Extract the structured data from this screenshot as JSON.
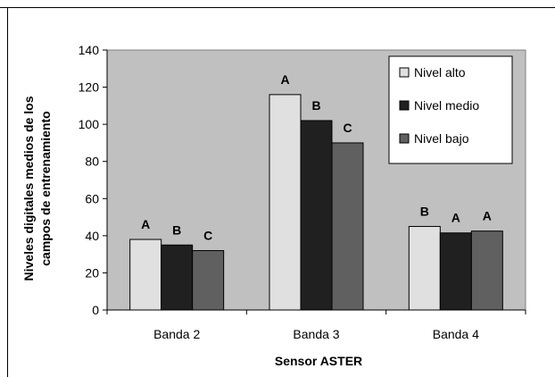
{
  "chart_data": {
    "type": "bar",
    "categories": [
      "Banda 2",
      "Banda 3",
      "Banda 4"
    ],
    "series": [
      {
        "name": "Nivel alto",
        "values": [
          38,
          116,
          45
        ],
        "annotations": [
          "A",
          "A",
          "B"
        ],
        "color": "#e0e0e0"
      },
      {
        "name": "Nivel medio",
        "values": [
          35,
          102,
          41.5
        ],
        "annotations": [
          "B",
          "B",
          "A"
        ],
        "color": "#202020"
      },
      {
        "name": "Nivel bajo",
        "values": [
          32,
          90,
          42.5
        ],
        "annotations": [
          "C",
          "C",
          "A"
        ],
        "color": "#606060"
      }
    ],
    "ylim": [
      0,
      140
    ],
    "yticks": [
      0,
      20,
      40,
      60,
      80,
      100,
      120,
      140
    ],
    "ylabel_line1": "Niveles digitales medios de los",
    "ylabel_line2": "campos de entrenamiento",
    "xlabel": "Sensor ASTER",
    "grid": false,
    "legend_position": "top-right",
    "plot_background": "#c0c0c0"
  }
}
